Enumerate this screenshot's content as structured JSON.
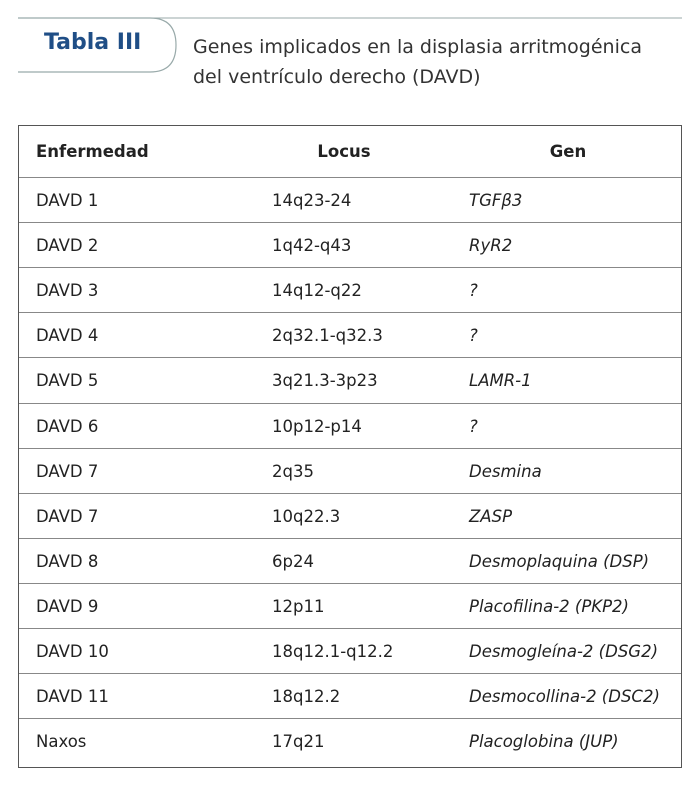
{
  "header": {
    "label": "Tabla III",
    "title_lines": [
      "Genes implicados en la displasia arritmogénica",
      "del ventrículo derecho (DAVD)"
    ]
  },
  "table": {
    "columns": [
      "Enfermedad",
      "Locus",
      "Gen"
    ],
    "rows": [
      [
        "DAVD 1",
        "14q23-24",
        "TGFβ3"
      ],
      [
        "DAVD 2",
        "1q42-q43",
        "RyR2"
      ],
      [
        "DAVD 3",
        "14q12-q22",
        "?"
      ],
      [
        "DAVD 4",
        "2q32.1-q32.3",
        "?"
      ],
      [
        "DAVD 5",
        "3q21.3-3p23",
        "LAMR-1"
      ],
      [
        "DAVD 6",
        "10p12-p14",
        "?"
      ],
      [
        "DAVD 7",
        "2q35",
        "Desmina"
      ],
      [
        "DAVD 7",
        "10q22.3",
        "ZASP"
      ],
      [
        "DAVD 8",
        "6p24",
        "Desmoplaquina (DSP)"
      ],
      [
        "DAVD 9",
        "12p11",
        "Placofilina-2 (PKP2)"
      ],
      [
        "DAVD 10",
        "18q12.1-q12.2",
        "Desmogleína-2 (DSG2)"
      ],
      [
        "DAVD 11",
        "18q12.2",
        "Desmocollina-2 (DSC2)"
      ],
      [
        "Naxos",
        "17q21",
        "Placoglobina (JUP)"
      ]
    ]
  }
}
